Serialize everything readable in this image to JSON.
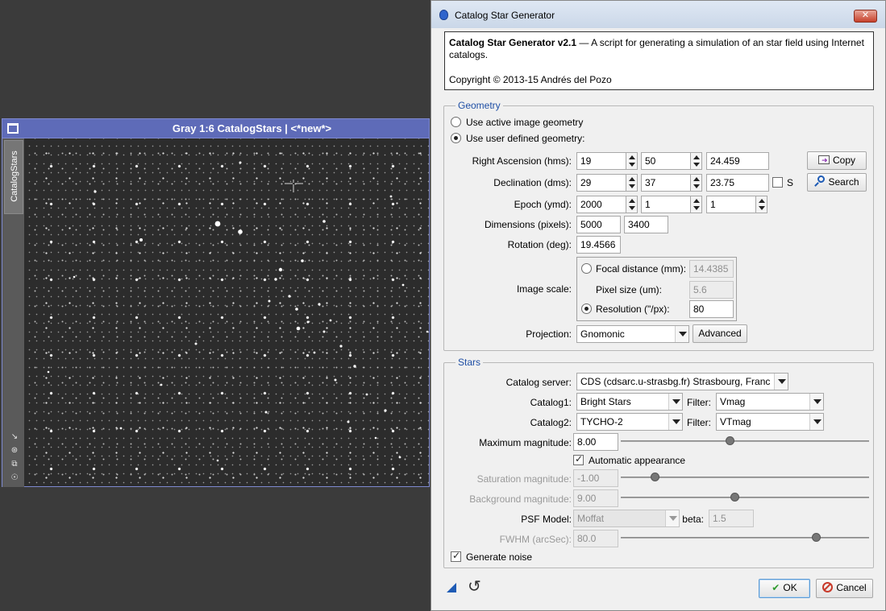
{
  "image_window": {
    "title": "Gray 1:6 CatalogStars | <*new*>",
    "side_tab": "CatalogStars"
  },
  "dialog": {
    "title": "Catalog Star Generator",
    "close": "✕",
    "info": {
      "name": "Catalog Star Generator v2.1",
      "description": " — A script for generating a simulation of an star field using Internet catalogs.",
      "copyright": "Copyright © 2013-15 Andrés del Pozo"
    },
    "geometry": {
      "title": "Geometry",
      "use_active": "Use active image geometry",
      "use_user": "Use user defined geometry:",
      "ra_label": "Right Ascension (hms):",
      "ra": [
        "19",
        "50",
        "24.459"
      ],
      "dec_label": "Declination (dms):",
      "dec": [
        "29",
        "37",
        "23.75"
      ],
      "south_label": "S",
      "epoch_label": "Epoch (ymd):",
      "epoch": [
        "2000",
        "1",
        "1"
      ],
      "dimensions_label": "Dimensions (pixels):",
      "width": "5000",
      "height": "3400",
      "rotation_label": "Rotation (deg):",
      "rotation": "19.4566",
      "image_scale_label": "Image scale:",
      "focal_label": "Focal distance (mm):",
      "focal": "14.4385",
      "pixel_label": "Pixel size (um):",
      "pixel": "5.6",
      "resolution_label": "Resolution (\"/px):",
      "resolution": "80",
      "projection_label": "Projection:",
      "projection": "Gnomonic",
      "advanced": "Advanced",
      "copy": "Copy",
      "search": "Search"
    },
    "stars": {
      "title": "Stars",
      "server_label": "Catalog server:",
      "server": "CDS (cdsarc.u-strasbg.fr) Strasbourg, Franc",
      "catalog1_label": "Catalog1:",
      "catalog1": "Bright Stars",
      "filter1_label": "Filter:",
      "filter1": "Vmag",
      "catalog2_label": "Catalog2:",
      "catalog2": "TYCHO-2",
      "filter2_label": "Filter:",
      "filter2": "VTmag",
      "maxmag_label": "Maximum magnitude:",
      "maxmag": "8.00",
      "maxmag_level": 0.44,
      "auto_label": "Automatic appearance",
      "satmag_label": "Saturation magnitude:",
      "satmag": "-1.00",
      "satmag_level": 0.14,
      "bgmag_label": "Background magnitude:",
      "bgmag": "9.00",
      "bgmag_level": 0.46,
      "psf_label": "PSF Model:",
      "psf": "Moffat",
      "beta_label": "beta:",
      "beta": "1.5",
      "fwhm_label": "FWHM (arcSec):",
      "fwhm": "80.0",
      "fwhm_level": 0.79,
      "noise_label": "Generate noise"
    },
    "buttons": {
      "ok": "OK",
      "cancel": "Cancel"
    }
  }
}
